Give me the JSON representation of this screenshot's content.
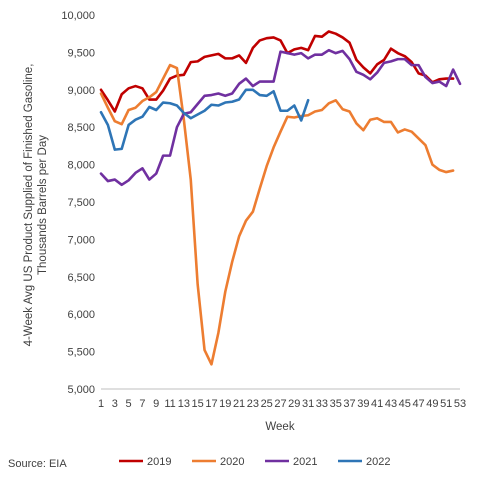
{
  "chart_data": {
    "type": "line",
    "ylabel": "4-Week Avg US Product Supplied of Finished Gasoline, Thousands Barrels per Day",
    "ylabel_lines": [
      "4-Week Avg US Product Supplied of Finished Gasoline,",
      "Thousands Barrels per Day"
    ],
    "xlabel": "Week",
    "ylim": [
      5000,
      10000
    ],
    "yticks": [
      5000,
      5500,
      6000,
      6500,
      7000,
      7500,
      8000,
      8500,
      9000,
      9500,
      10000
    ],
    "ytick_labels": [
      "5,000",
      "5,500",
      "6,000",
      "6,500",
      "7,000",
      "7,500",
      "8,000",
      "8,500",
      "9,000",
      "9,500",
      "10,000"
    ],
    "xlim": [
      1,
      53
    ],
    "xticks": [
      1,
      3,
      5,
      7,
      9,
      11,
      13,
      15,
      17,
      19,
      21,
      23,
      25,
      27,
      29,
      31,
      33,
      35,
      37,
      39,
      41,
      43,
      45,
      47,
      49,
      51,
      53
    ],
    "legend_position": "bottom",
    "source": "Source: EIA",
    "series": [
      {
        "name": "2019",
        "color": "#c00000",
        "x": [
          1,
          2,
          3,
          4,
          5,
          6,
          7,
          8,
          9,
          10,
          11,
          12,
          13,
          14,
          15,
          16,
          17,
          18,
          19,
          20,
          21,
          22,
          23,
          24,
          25,
          26,
          27,
          28,
          29,
          30,
          31,
          32,
          33,
          34,
          35,
          36,
          37,
          38,
          39,
          40,
          41,
          42,
          43,
          44,
          45,
          46,
          47,
          48,
          49,
          50,
          51,
          52
        ],
        "values": [
          9000,
          8860,
          8710,
          8940,
          9020,
          9050,
          9020,
          8870,
          8870,
          8990,
          9150,
          9190,
          9200,
          9370,
          9380,
          9440,
          9460,
          9480,
          9420,
          9420,
          9460,
          9360,
          9560,
          9660,
          9690,
          9700,
          9660,
          9490,
          9540,
          9560,
          9530,
          9720,
          9710,
          9780,
          9750,
          9700,
          9630,
          9400,
          9300,
          9220,
          9340,
          9400,
          9550,
          9490,
          9450,
          9370,
          9220,
          9190,
          9100,
          9140,
          9150,
          9150
        ]
      },
      {
        "name": "2020",
        "color": "#ed7d31",
        "x": [
          1,
          2,
          3,
          4,
          5,
          6,
          7,
          8,
          9,
          10,
          11,
          12,
          13,
          14,
          15,
          16,
          17,
          18,
          19,
          20,
          21,
          22,
          23,
          24,
          25,
          26,
          27,
          28,
          29,
          30,
          31,
          32,
          33,
          34,
          35,
          36,
          37,
          38,
          39,
          40,
          41,
          42,
          43,
          44,
          45,
          46,
          47,
          48,
          49,
          50,
          51,
          52
        ],
        "values": [
          8950,
          8760,
          8580,
          8540,
          8730,
          8760,
          8850,
          8900,
          8970,
          9150,
          9330,
          9290,
          8600,
          7800,
          6400,
          5520,
          5330,
          5750,
          6300,
          6700,
          7040,
          7250,
          7370,
          7680,
          7980,
          8230,
          8440,
          8640,
          8630,
          8650,
          8660,
          8710,
          8730,
          8820,
          8860,
          8740,
          8710,
          8550,
          8460,
          8600,
          8620,
          8570,
          8570,
          8430,
          8470,
          8440,
          8350,
          8260,
          8000,
          7930,
          7900,
          7920
        ]
      },
      {
        "name": "2021",
        "color": "#7030a0",
        "x": [
          1,
          2,
          3,
          4,
          5,
          6,
          7,
          8,
          9,
          10,
          11,
          12,
          13,
          14,
          15,
          16,
          17,
          18,
          19,
          20,
          21,
          22,
          23,
          24,
          25,
          26,
          27,
          28,
          29,
          30,
          31,
          32,
          33,
          34,
          35,
          36,
          37,
          38,
          39,
          40,
          41,
          42,
          43,
          44,
          45,
          46,
          47,
          48,
          49,
          50,
          51,
          52,
          53
        ],
        "values": [
          7880,
          7780,
          7800,
          7730,
          7790,
          7890,
          7950,
          7800,
          7880,
          8120,
          8120,
          8500,
          8680,
          8700,
          8810,
          8920,
          8930,
          8950,
          8920,
          8950,
          9080,
          9150,
          9050,
          9110,
          9110,
          9110,
          9510,
          9490,
          9470,
          9490,
          9420,
          9470,
          9470,
          9530,
          9490,
          9520,
          9410,
          9240,
          9200,
          9140,
          9230,
          9360,
          9380,
          9410,
          9410,
          9330,
          9330,
          9170,
          9090,
          9110,
          9050,
          9270,
          9080
        ]
      },
      {
        "name": "2022",
        "color": "#2e75b6",
        "x": [
          1,
          2,
          3,
          4,
          5,
          6,
          7,
          8,
          9,
          10,
          11,
          12,
          13,
          14,
          15,
          16,
          17,
          18,
          19,
          20,
          21,
          22,
          23,
          24,
          25,
          26,
          27,
          28,
          29,
          30,
          31
        ],
        "values": [
          8700,
          8530,
          8200,
          8210,
          8530,
          8600,
          8640,
          8770,
          8730,
          8830,
          8820,
          8790,
          8690,
          8620,
          8670,
          8720,
          8800,
          8790,
          8830,
          8840,
          8870,
          9000,
          9000,
          8930,
          8920,
          8980,
          8720,
          8720,
          8790,
          8590,
          8860
        ]
      }
    ]
  }
}
